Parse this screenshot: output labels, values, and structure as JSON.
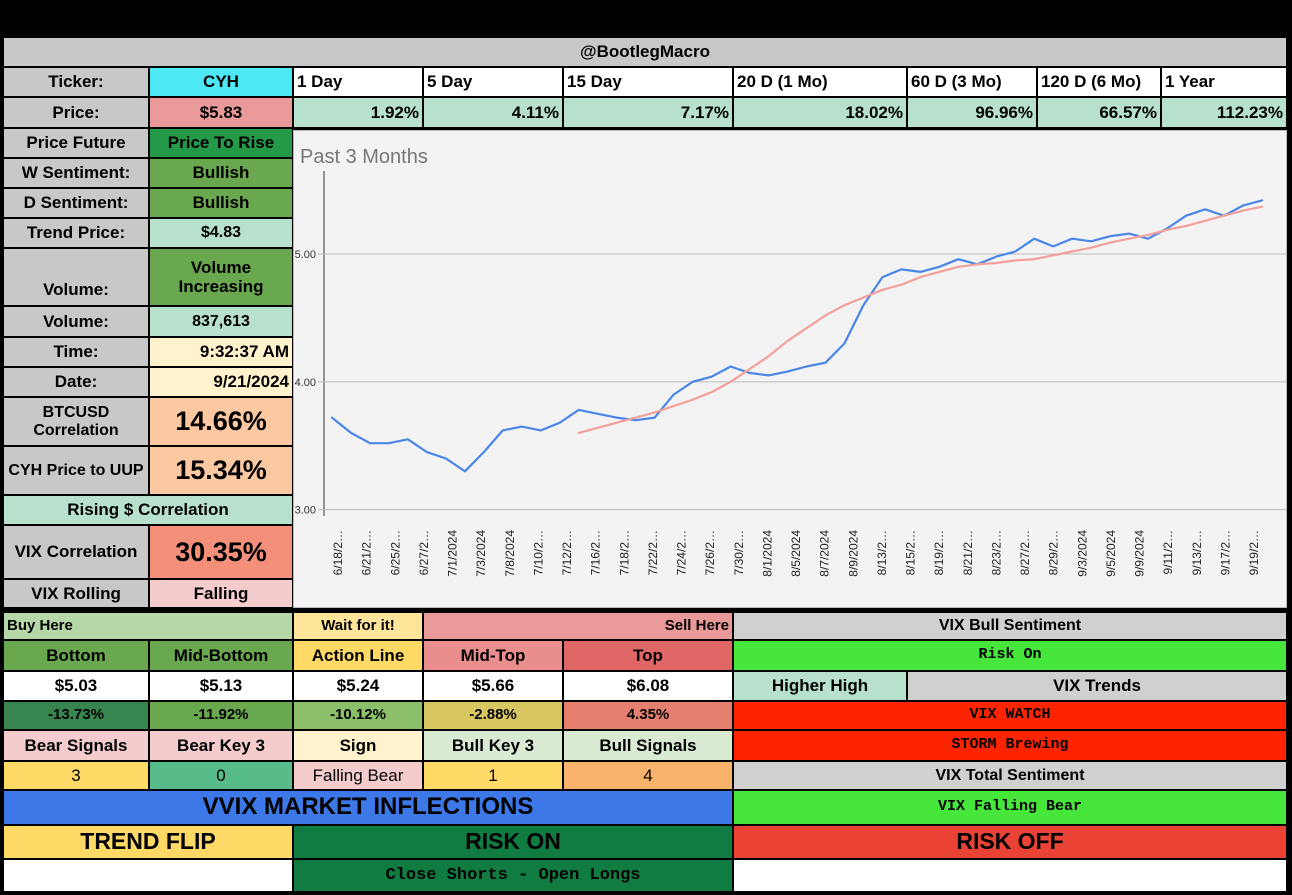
{
  "header": {
    "title": "@BootlegMacro"
  },
  "ticker_row": {
    "label": "Ticker:",
    "symbol": "CYH",
    "periods": [
      "1 Day",
      "5 Day",
      "15 Day",
      "20 D (1 Mo)",
      "60 D (3 Mo)",
      "120 D (6 Mo)",
      "1 Year"
    ]
  },
  "price_row": {
    "label": "Price:",
    "price": "$5.83",
    "changes": [
      "1.92%",
      "4.11%",
      "7.17%",
      "18.02%",
      "96.96%",
      "66.57%",
      "112.23%"
    ]
  },
  "left_panel": {
    "price_future_label": "Price Future",
    "price_future_value": "Price To Rise",
    "w_sentiment_label": "W Sentiment:",
    "w_sentiment_value": "Bullish",
    "d_sentiment_label": "D Sentiment:",
    "d_sentiment_value": "Bullish",
    "trend_price_label": "Trend Price:",
    "trend_price_value": "$4.83",
    "volume_label": "Volume:",
    "volume_status": "Volume Increasing",
    "volume_label_2": "Volume:",
    "volume_value": "837,613",
    "time_label": "Time:",
    "time_value": "9:32:37 AM",
    "date_label": "Date:",
    "date_value": "9/21/2024",
    "btc_label": "BTCUSD Correlation",
    "btc_value": "14.66%",
    "uup_label": "CYH Price to UUP",
    "uup_value": "15.34%",
    "rising_corr": "Rising $ Correlation",
    "vix_corr_label": "VIX Correlation",
    "vix_corr_value": "30.35%",
    "vix_rolling_label": "VIX Rolling",
    "vix_rolling_value": "Falling"
  },
  "levels": {
    "buy_here": "Buy Here",
    "wait": "Wait for it!",
    "sell_here": "Sell Here",
    "headers": [
      "Bottom",
      "Mid-Bottom",
      "Action Line",
      "Mid-Top",
      "Top"
    ],
    "prices": [
      "$5.03",
      "$5.13",
      "$5.24",
      "$5.66",
      "$6.08"
    ],
    "percents": [
      "-13.73%",
      "-11.92%",
      "-10.12%",
      "-2.88%",
      "4.35%"
    ]
  },
  "signals": {
    "headers": [
      "Bear Signals",
      "Bear Key 3",
      "Sign",
      "Bull Key 3",
      "Bull Signals"
    ],
    "values": [
      "3",
      "0",
      "Falling Bear",
      "1",
      "4"
    ]
  },
  "vix_panel": {
    "bull_sentiment_label": "VIX Bull Sentiment",
    "risk_on": "Risk On",
    "higher_high": "Higher High",
    "vix_trends": "VIX Trends",
    "vix_watch": "VIX WATCH",
    "storm": "STORM Brewing",
    "total_sentiment_label": "VIX Total Sentiment",
    "falling_bear": "VIX Falling Bear"
  },
  "vvix": {
    "title": "VVIX MARKET INFLECTIONS",
    "trend_flip": "TREND FLIP",
    "risk_on": "RISK ON",
    "risk_off": "RISK OFF",
    "action": "Close Shorts - Open Longs"
  },
  "colors": {
    "blue_line": "#4a86e8",
    "red_line": "#f4a09a",
    "risk_on_green": "#47e63b",
    "alert_red": "#ff2400"
  },
  "chart_data": {
    "type": "line",
    "title": "Past 3 Months",
    "x_tick_labels": [
      "6/18/2…",
      "6/21/2…",
      "6/25/2…",
      "6/27/2…",
      "7/1/2024",
      "7/3/2024",
      "7/8/2024",
      "7/10/2…",
      "7/12/2…",
      "7/16/2…",
      "7/18/2…",
      "7/22/2…",
      "7/24/2…",
      "7/26/2…",
      "7/30/2…",
      "8/1/2024",
      "8/5/2024",
      "8/7/2024",
      "8/9/2024",
      "8/13/2…",
      "8/15/2…",
      "8/19/2…",
      "8/21/2…",
      "8/23/2…",
      "8/27/2…",
      "8/29/2…",
      "9/3/2024",
      "9/5/2024",
      "9/9/2024",
      "9/11/2…",
      "9/13/2…",
      "9/17/2…",
      "9/19/2…"
    ],
    "y_tick_labels": [
      "5.00",
      "4.00",
      "3.00"
    ],
    "ylim": [
      2.95,
      5.65
    ],
    "series": [
      {
        "color": "#4a86e8",
        "values": [
          3.72,
          3.6,
          3.52,
          3.52,
          3.55,
          3.45,
          3.4,
          3.3,
          3.45,
          3.62,
          3.65,
          3.62,
          3.68,
          3.78,
          3.75,
          3.72,
          3.7,
          3.72,
          3.9,
          4.0,
          4.04,
          4.12,
          4.07,
          4.05,
          4.08,
          4.12,
          4.15,
          4.3,
          4.6,
          4.82,
          4.88,
          4.86,
          4.9,
          4.96,
          4.92,
          4.98,
          5.02,
          5.12,
          5.06,
          5.12,
          5.1,
          5.14,
          5.16,
          5.12,
          5.2,
          5.3,
          5.35,
          5.3,
          5.38,
          5.42
        ]
      },
      {
        "color": "#f4a09a",
        "values": [
          null,
          null,
          null,
          null,
          null,
          null,
          null,
          null,
          null,
          null,
          null,
          null,
          null,
          3.6,
          3.64,
          3.68,
          3.72,
          3.76,
          3.81,
          3.86,
          3.92,
          4.0,
          4.1,
          4.2,
          4.32,
          4.42,
          4.52,
          4.6,
          4.66,
          4.72,
          4.76,
          4.82,
          4.86,
          4.9,
          4.92,
          4.93,
          4.95,
          4.96,
          4.99,
          5.02,
          5.05,
          5.09,
          5.12,
          5.15,
          5.19,
          5.22,
          5.26,
          5.3,
          5.34,
          5.37
        ]
      }
    ]
  }
}
